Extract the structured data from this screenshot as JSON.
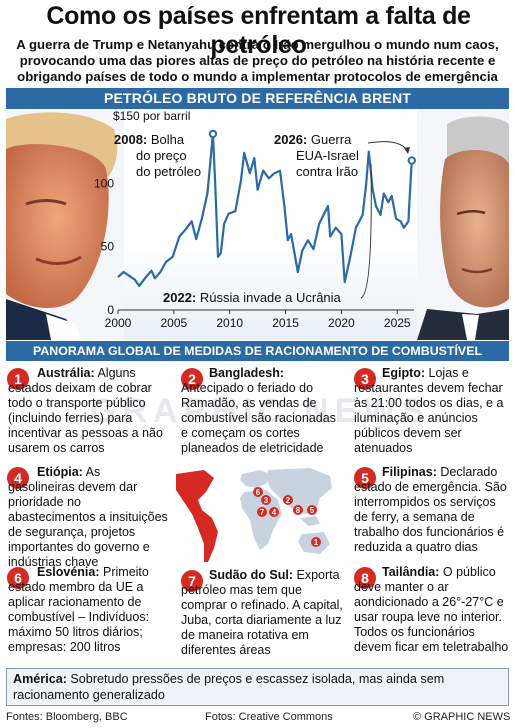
{
  "header": {
    "title": "Como os países enfrentam a falta de petróleo",
    "subtitle": "A guerra de Trump e Netanyahu contra o Irão mergulhou o mundo num caos, provocando uma das piores altas de preço do petróleo na história recente e obrigando países de todo o mundo a implementar protocolos de emergência"
  },
  "chart_data": {
    "type": "line",
    "title": "PETRÓLEO BRUTO DE REFERÊNCIA BRENT",
    "ylabel": "$150 por barril",
    "ylim": [
      0,
      150
    ],
    "xlim": [
      2000,
      2026.5
    ],
    "x_ticks": [
      "2000",
      "2005",
      "2010",
      "2015",
      "2020",
      "2025"
    ],
    "y_ticks": [
      "0",
      "50",
      "100"
    ],
    "grid": false,
    "series": [
      {
        "color": "#2c6aa5",
        "x": [
          2000,
          2000.5,
          2001,
          2001.5,
          2001.9,
          2002.5,
          2003,
          2003.3,
          2003.8,
          2004.3,
          2004.9,
          2005.5,
          2006,
          2006.6,
          2007,
          2007.5,
          2008,
          2008.3,
          2008.5,
          2008.7,
          2008.95,
          2009.2,
          2009.5,
          2009.9,
          2010.5,
          2011,
          2011.3,
          2011.8,
          2012.2,
          2012.5,
          2013,
          2013.5,
          2014,
          2014.5,
          2014.9,
          2015.2,
          2015.5,
          2015.9,
          2016.1,
          2016.5,
          2017,
          2017.5,
          2018,
          2018.8,
          2019,
          2019.5,
          2020,
          2020.3,
          2020.8,
          2021.3,
          2021.9,
          2022.2,
          2022.45,
          2022.8,
          2023.1,
          2023.5,
          2023.8,
          2024.2,
          2024.5,
          2024.9,
          2025.3,
          2025.6,
          2026,
          2026.15,
          2026.3
        ],
        "values": [
          26,
          30,
          27,
          24,
          19,
          26,
          31,
          25,
          30,
          38,
          42,
          58,
          63,
          70,
          56,
          72,
          92,
          120,
          139,
          100,
          42,
          45,
          68,
          76,
          78,
          102,
          124,
          108,
          120,
          95,
          110,
          104,
          108,
          110,
          82,
          55,
          60,
          40,
          30,
          47,
          55,
          48,
          68,
          82,
          58,
          65,
          60,
          22,
          42,
          65,
          75,
          98,
          125,
          95,
          82,
          75,
          92,
          85,
          90,
          72,
          70,
          65,
          70,
          95,
          118
        ]
      }
    ],
    "annotations": [
      {
        "x": 2008.5,
        "y": 139,
        "text": "2008: Bolha do preço do petróleo",
        "lines": [
          "2008: Bolha",
          "do preço",
          "do petróleo"
        ]
      },
      {
        "x": 2026.3,
        "y": 118,
        "text": "2026: Guerra EUA-Israel contra Irão",
        "lines": [
          "2026: Guerra",
          "EUA-Israel",
          "contra Irão"
        ]
      },
      {
        "x": 2022.45,
        "y": 125,
        "text": "2022: Rússia invade a Ucrânia",
        "lines": [
          "2022: Rússia invade a Ucrânia"
        ]
      }
    ]
  },
  "panorama": {
    "heading": "PANORAMA GLOBAL DE MEDIDAS DE RACIONAMENTO DE COMBUSTÍVEL",
    "items": [
      {
        "num": "1",
        "place": "Austrália:",
        "text": "Alguns estados deixam de cobrar todo o transporte público (incluindo ferries) para incentivar as pessoas a não usarem os carros"
      },
      {
        "num": "2",
        "place": "Bangladesh:",
        "text": "Antecipado o feriado do Ramadão, as vendas de combustível são racionadas e começam os cortes planeados de eletricidade"
      },
      {
        "num": "3",
        "place": "Egipto:",
        "text": "Lojas e restaurantes devem fechar às 21:00 todos os dias, e a iluminação e anúncios públicos devem ser atenuados"
      },
      {
        "num": "4",
        "place": "Etiópia:",
        "text": "As gasolineiras devem dar prioridade no abastecimentos a insituições de segurança, projetos importantes do governo e indústrias chave"
      },
      {
        "num": "5",
        "place": "Filipinas:",
        "text": "Declarado estado de emergência. São interrompidos os serviços de ferry, a semana de trabalho dos funcionários é reduzida a quatro dias"
      },
      {
        "num": "6",
        "place": "Eslovénia:",
        "text": "Primeito estado membro da UE a aplicar racionamento de combustível – Indivíduos: máximo 50 litros diários; empresas: 200 litros"
      },
      {
        "num": "7",
        "place": "Sudão do Sul:",
        "text": "Exporta petróleo mas tem que comprar o refinado. A capital, Juba, corta diariamente a luz de maneira rotativa em diferentes áreas"
      },
      {
        "num": "8",
        "place": "Tailândia:",
        "text": "O público deve manter o ar aondicionado a 26°-27°C e usar roupa leve no interior. Todos os funcionários devem ficar em teletrabalho"
      }
    ],
    "america_label": "América:",
    "america_text": "Sobretudo pressões de preços e escassez isolada, mas ainda sem racionamento generalizado"
  },
  "footer": {
    "sources": "Fontes: Bloomberg, BBC",
    "photos": "Fotos: Creative Commons",
    "copyright": "© GRAPHIC NEWS"
  },
  "colors": {
    "accent_blue": "#2c6aa5",
    "marker_red": "#d42a23",
    "map_red": "#d42a23"
  },
  "watermark": "GRAPHIC NEWS"
}
